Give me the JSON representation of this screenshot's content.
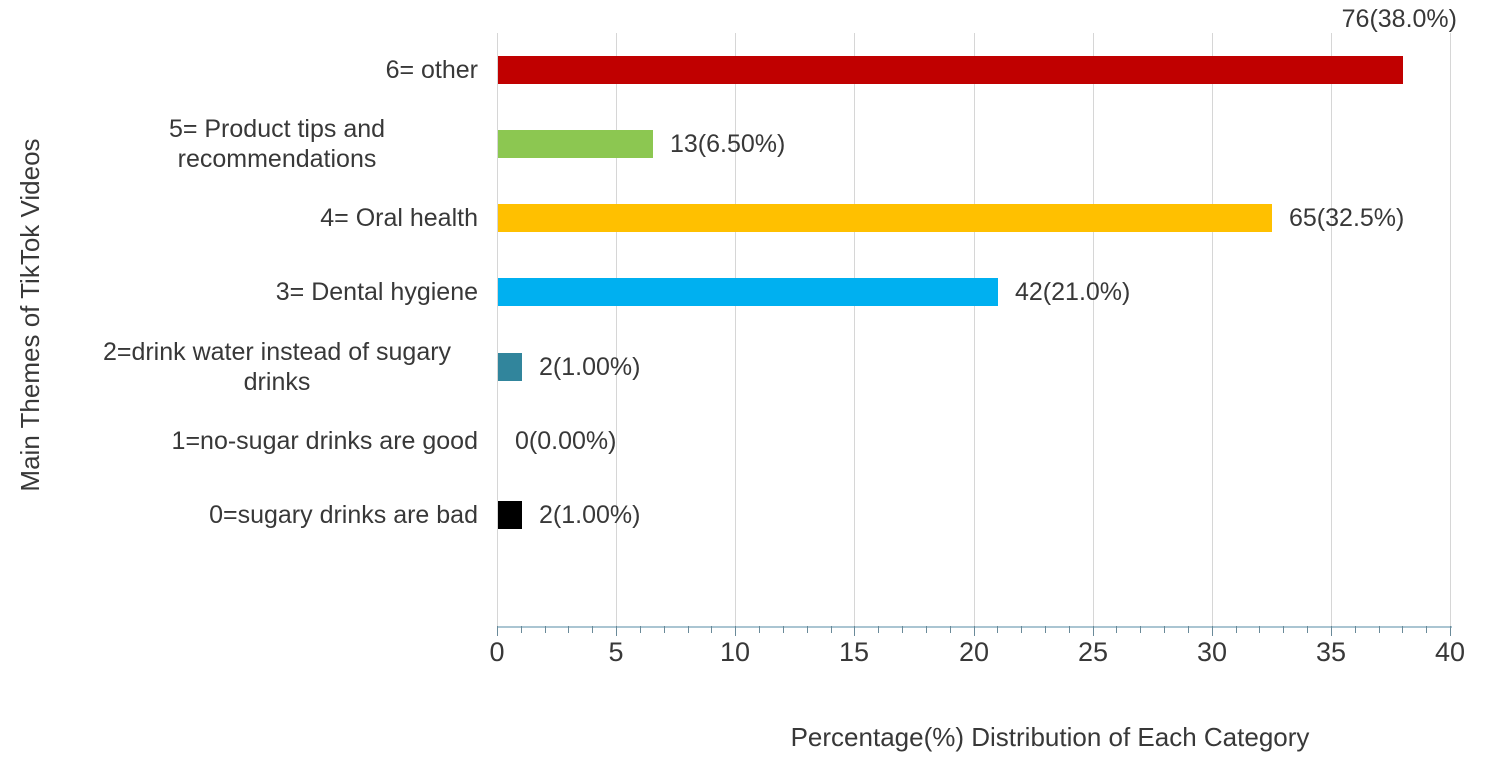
{
  "figure": {
    "background": "#ffffff",
    "text_color": "#383838"
  },
  "chart_data": {
    "type": "bar",
    "orientation": "horizontal",
    "xlabel": "Percentage(%) Distribution of Each Category",
    "ylabel": "Main Themes of TikTok Videos",
    "xlim": [
      0,
      40
    ],
    "x_major_ticks": [
      0,
      5,
      10,
      15,
      20,
      25,
      30,
      35,
      40
    ],
    "x_minor_tick_step": 1,
    "grid": "vertical-major",
    "legend": null,
    "categories": [
      "6= other",
      "5= Product tips and recommendations",
      "4= Oral health",
      "3= Dental hygiene",
      "2=drink water instead of sugary drinks",
      "1=no-sugar drinks are good",
      "0=sugary drinks are bad"
    ],
    "series": [
      {
        "name": "videos",
        "counts": [
          76,
          13,
          65,
          42,
          2,
          0,
          2
        ],
        "percent_values": [
          38.0,
          6.5,
          32.5,
          21.0,
          1.0,
          0.0,
          1.0
        ],
        "data_labels": [
          "76(38.0%)",
          "13(6.50%)",
          "65(32.5%)",
          "42(21.0%)",
          "2(1.00%)",
          "0(0.00%)",
          "2(1.00%)"
        ],
        "bar_colors": [
          "#c00000",
          "#8cc751",
          "#ffc000",
          "#00b0f0",
          "#31859c",
          null,
          "#000000"
        ],
        "data_label_positions": [
          "above-end",
          "right",
          "right",
          "right",
          "right",
          "right",
          "right"
        ]
      }
    ]
  },
  "style": {
    "gridline_color": "#d6d6d6",
    "axis_line_color": "#aac5d2",
    "tick_color": "#6a8a99"
  }
}
